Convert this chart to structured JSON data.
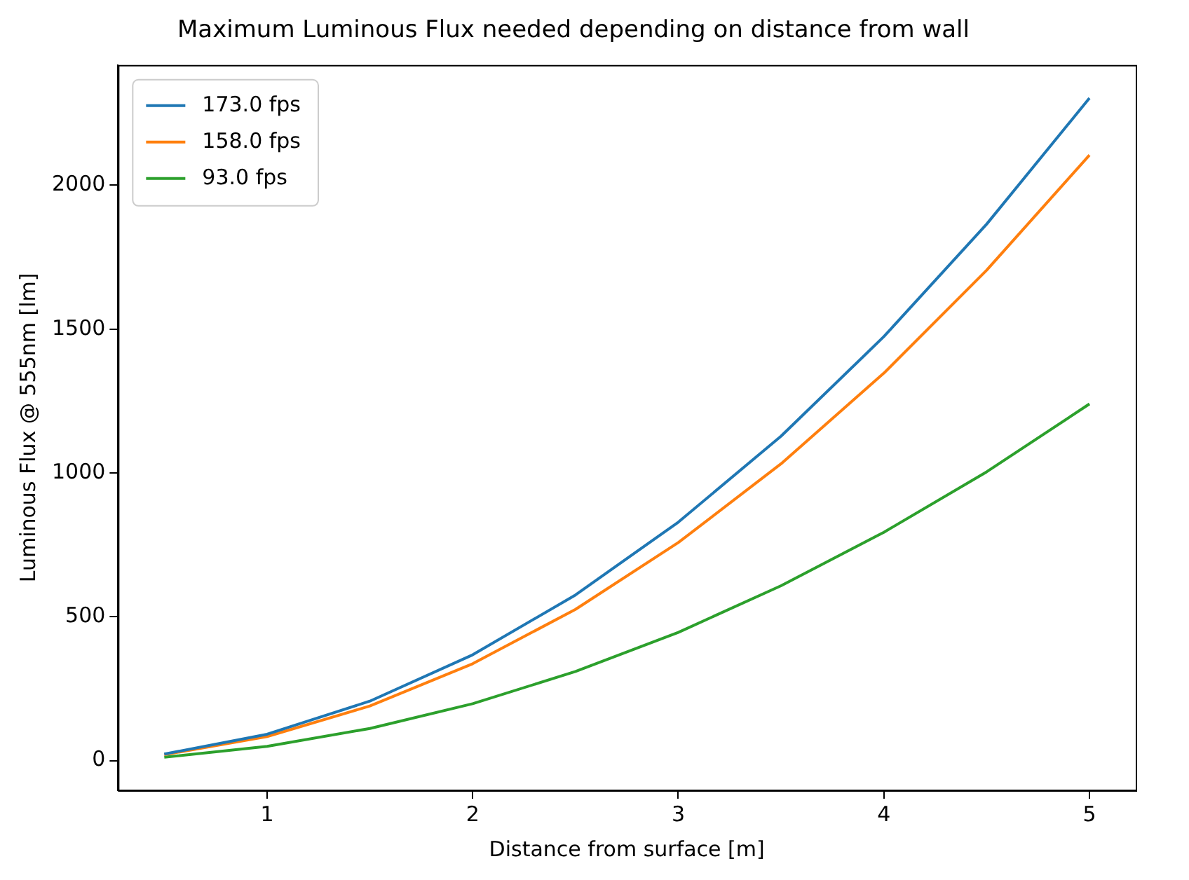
{
  "chart_data": {
    "type": "line",
    "title": "Maximum Luminous Flux needed depending on distance from wall",
    "xlabel": "Distance from surface [m]",
    "ylabel": "Luminous Flux @ 555nm [lm]",
    "x": [
      0.5,
      1,
      1.5,
      2,
      2.5,
      3,
      3.5,
      4,
      4.5,
      5
    ],
    "series": [
      {
        "name": "173.0 fps",
        "color": "#1f77b4",
        "values": [
          23,
          92,
          207,
          368,
          576,
          829,
          1128,
          1474,
          1865,
          2303
        ]
      },
      {
        "name": "158.0 fps",
        "color": "#ff7f0e",
        "values": [
          21,
          84,
          190,
          337,
          526,
          758,
          1032,
          1347,
          1705,
          2105
        ]
      },
      {
        "name": "93.0 fps",
        "color": "#2ca02c",
        "values": [
          12,
          50,
          112,
          198,
          310,
          446,
          608,
          794,
          1004,
          1240
        ]
      }
    ],
    "xlim": [
      0.275,
      5.225
    ],
    "xticks": [
      1,
      2,
      3,
      4,
      5
    ],
    "ylim": [
      -103,
      2418
    ],
    "yticks": [
      0,
      500,
      1000,
      1500,
      2000
    ],
    "grid": false,
    "legend": "top left",
    "marker": "none",
    "line_style": "solid"
  }
}
